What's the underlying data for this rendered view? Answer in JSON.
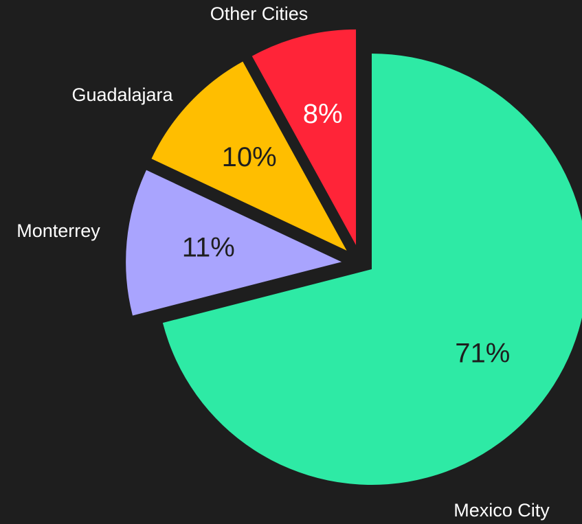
{
  "chart_data": {
    "type": "pie",
    "categories": [
      "Mexico City",
      "Monterrey",
      "Guadalajara",
      "Other Cities"
    ],
    "values": [
      71,
      11,
      10,
      8
    ],
    "value_labels": [
      "71%",
      "11%",
      "10%",
      "8%"
    ],
    "colors": [
      "#2eeaa5",
      "#a9a4fe",
      "#ffbe00",
      "#ff2438"
    ]
  }
}
